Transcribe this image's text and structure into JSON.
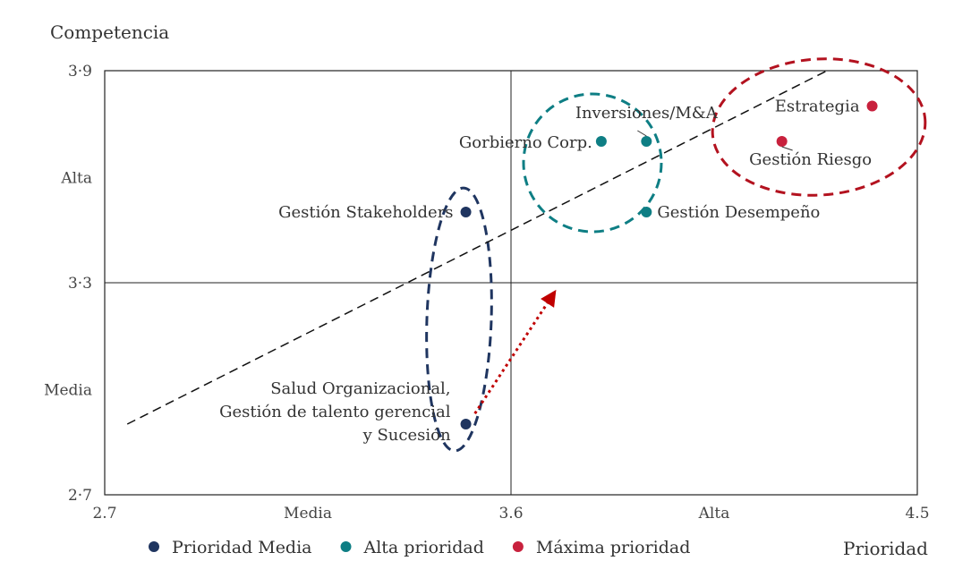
{
  "chart_data": {
    "type": "scatter",
    "ylabel": "Competencia",
    "xlabel": "Prioridad",
    "xlim": [
      2.7,
      4.5
    ],
    "ylim": [
      2.7,
      3.9
    ],
    "x_ticks": [
      2.7,
      3.6,
      4.5
    ],
    "y_ticks": [
      2.7,
      3.3,
      3.9
    ],
    "x_category_labels": [
      {
        "text": "Media",
        "x": 3.15
      },
      {
        "text": "Alta",
        "x": 4.05
      }
    ],
    "y_category_labels": [
      {
        "text": "Alta",
        "y": 3.6
      },
      {
        "text": "Media",
        "y": 3.0
      }
    ],
    "quadrant_lines": {
      "x": 3.6,
      "y": 3.3
    },
    "series": [
      {
        "name": "Prioridad Media",
        "color": "#1f3560",
        "points": [
          {
            "label": "Gestión Stakeholders",
            "x": 3.5,
            "y": 3.5
          },
          {
            "label": "Salud Organizacional,\nGestión de talento gerencial\ny Sucesión",
            "x": 3.5,
            "y": 2.9
          }
        ]
      },
      {
        "name": "Alta prioridad",
        "color": "#0e7e84",
        "points": [
          {
            "label": "Gorbierno Corp.",
            "x": 3.8,
            "y": 3.7
          },
          {
            "label": "Inversiones/M&A",
            "x": 3.9,
            "y": 3.7
          },
          {
            "label": "Gestión Desempeño",
            "x": 3.9,
            "y": 3.5
          }
        ]
      },
      {
        "name": "Máxima prioridad",
        "color": "#c8213d",
        "points": [
          {
            "label": "Gestión Riesgo",
            "x": 4.2,
            "y": 3.7
          },
          {
            "label": "Estrategia",
            "x": 4.4,
            "y": 3.8
          }
        ]
      }
    ],
    "trend_line": {
      "from": [
        2.75,
        2.9
      ],
      "to": [
        4.3,
        3.9
      ],
      "style": "dashed",
      "color": "#111111"
    },
    "cluster_outlines": [
      {
        "series": "Prioridad Media",
        "color": "#1f3560"
      },
      {
        "series": "Alta prioridad",
        "color": "#0e7e84"
      },
      {
        "series": "Máxima prioridad",
        "color": "#b3121f"
      }
    ],
    "arrow": {
      "from": [
        3.52,
        2.93
      ],
      "to": [
        3.7,
        3.28
      ],
      "style": "dotted",
      "color": "#c00000"
    },
    "legend": "bottom-left",
    "grid": false
  }
}
